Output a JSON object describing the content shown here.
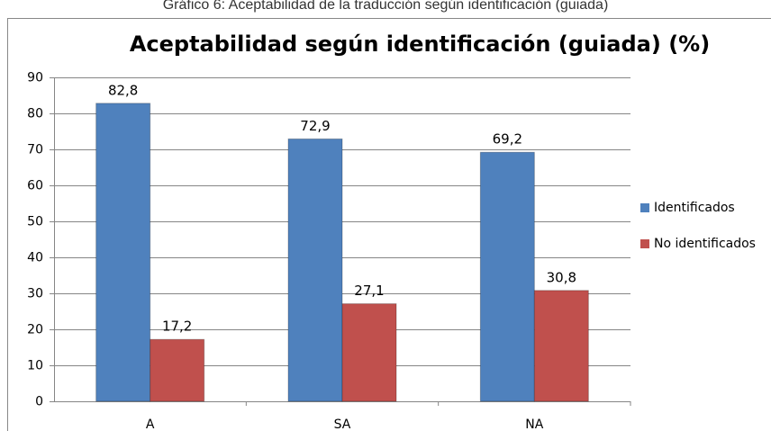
{
  "caption": "Gráfico 6: Aceptabilidad de la traducción según identificación (guiada)",
  "chart_data": {
    "type": "bar",
    "title": "Aceptabilidad según identificación (guiada) (%)",
    "categories": [
      "A",
      "SA",
      "NA"
    ],
    "series": [
      {
        "name": "Identificados",
        "color": "#4f81bd",
        "values": [
          82.8,
          72.9,
          69.2
        ],
        "value_labels": [
          "82,8",
          "72,9",
          "69,2"
        ]
      },
      {
        "name": "No identificados",
        "color": "#c0504d",
        "values": [
          17.2,
          27.1,
          30.8
        ],
        "value_labels": [
          "17,2",
          "27,1",
          "30,8"
        ]
      }
    ],
    "ylim": [
      0,
      90
    ],
    "yticks": [
      0,
      10,
      20,
      30,
      40,
      50,
      60,
      70,
      80,
      90
    ],
    "grid": true,
    "legend": "right"
  }
}
